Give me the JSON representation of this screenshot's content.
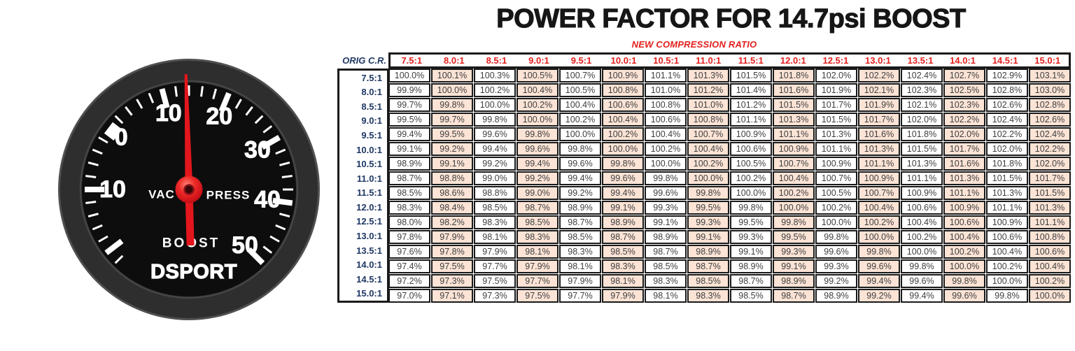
{
  "title": "POWER FACTOR FOR 14.7psi BOOST",
  "subtitle": "NEW COMPRESSION RATIO",
  "corner_label": "ORIG C.R.",
  "gauge": {
    "brand": "DSPORT",
    "vac_label": "VAC",
    "press_label": "PRESS",
    "boost_label": "BOOST",
    "needle_value": 15,
    "dial_numbers": [
      {
        "text": "10",
        "value": -10
      },
      {
        "text": "0",
        "value": 0
      },
      {
        "text": "10",
        "value": 10
      },
      {
        "text": "20",
        "value": 20
      },
      {
        "text": "30",
        "value": 30
      },
      {
        "text": "40",
        "value": 40
      },
      {
        "text": "50",
        "value": 50
      }
    ]
  },
  "colors": {
    "header_red": "#e2201e",
    "navy": "#1f3864",
    "cell_peach": "#fbe3d5",
    "cell_text": "#3f3f3f",
    "needle_red": "#e4161d",
    "table_border": "#1a1a1a"
  },
  "chart_data": {
    "type": "table",
    "title": "POWER FACTOR FOR 14.7psi BOOST",
    "column_group_label": "NEW COMPRESSION RATIO",
    "row_group_label": "ORIG C.R.",
    "cell_format": "percent_1dp",
    "columns": [
      "7.5:1",
      "8.0:1",
      "8.5:1",
      "9.0:1",
      "9.5:1",
      "10.0:1",
      "10.5:1",
      "11.0:1",
      "11.5:1",
      "12.0:1",
      "12.5:1",
      "13.0:1",
      "13.5:1",
      "14.0:1",
      "14.5:1",
      "15.0:1"
    ],
    "row_labels": [
      "7.5:1",
      "8.0:1",
      "8.5:1",
      "9.0:1",
      "9.5:1",
      "10.0:1",
      "10.5:1",
      "11.0:1",
      "11.5:1",
      "12.0:1",
      "12.5:1",
      "13.0:1",
      "13.5:1",
      "14.0:1",
      "14.5:1",
      "15.0:1"
    ],
    "values_pct": [
      [
        100.0,
        100.1,
        100.3,
        100.5,
        100.7,
        100.9,
        101.1,
        101.3,
        101.5,
        101.8,
        102.0,
        102.2,
        102.4,
        102.7,
        102.9,
        103.1
      ],
      [
        99.9,
        100.0,
        100.2,
        100.4,
        100.5,
        100.8,
        101.0,
        101.2,
        101.4,
        101.6,
        101.9,
        102.1,
        102.3,
        102.5,
        102.8,
        103.0
      ],
      [
        99.7,
        99.8,
        100.0,
        100.2,
        100.4,
        100.6,
        100.8,
        101.0,
        101.2,
        101.5,
        101.7,
        101.9,
        102.1,
        102.3,
        102.6,
        102.8
      ],
      [
        99.5,
        99.7,
        99.8,
        100.0,
        100.2,
        100.4,
        100.6,
        100.8,
        101.1,
        101.3,
        101.5,
        101.7,
        102.0,
        102.2,
        102.4,
        102.6
      ],
      [
        99.4,
        99.5,
        99.6,
        99.8,
        100.0,
        100.2,
        100.4,
        100.7,
        100.9,
        101.1,
        101.3,
        101.6,
        101.8,
        102.0,
        102.2,
        102.4
      ],
      [
        99.1,
        99.2,
        99.4,
        99.6,
        99.8,
        100.0,
        100.2,
        100.4,
        100.6,
        100.9,
        101.1,
        101.3,
        101.5,
        101.7,
        102.0,
        102.2
      ],
      [
        98.9,
        99.1,
        99.2,
        99.4,
        99.6,
        99.8,
        100.0,
        100.2,
        100.5,
        100.7,
        100.9,
        101.1,
        101.3,
        101.6,
        101.8,
        102.0
      ],
      [
        98.7,
        98.8,
        99.0,
        99.2,
        99.4,
        99.6,
        99.8,
        100.0,
        100.2,
        100.4,
        100.7,
        100.9,
        101.1,
        101.3,
        101.5,
        101.7
      ],
      [
        98.5,
        98.6,
        98.8,
        99.0,
        99.2,
        99.4,
        99.6,
        99.8,
        100.0,
        100.2,
        100.5,
        100.7,
        100.9,
        101.1,
        101.3,
        101.5
      ],
      [
        98.3,
        98.4,
        98.5,
        98.7,
        98.9,
        99.1,
        99.3,
        99.5,
        99.8,
        100.0,
        100.2,
        100.4,
        100.6,
        100.9,
        101.1,
        101.3
      ],
      [
        98.0,
        98.2,
        98.3,
        98.5,
        98.7,
        98.9,
        99.1,
        99.3,
        99.5,
        99.8,
        100.0,
        100.2,
        100.4,
        100.6,
        100.9,
        101.1
      ],
      [
        97.8,
        97.9,
        98.1,
        98.3,
        98.5,
        98.7,
        98.9,
        99.1,
        99.3,
        99.5,
        99.8,
        100.0,
        100.2,
        100.4,
        100.6,
        100.8
      ],
      [
        97.6,
        97.8,
        97.9,
        98.1,
        98.3,
        98.5,
        98.7,
        98.9,
        99.1,
        99.3,
        99.6,
        99.8,
        100.0,
        100.2,
        100.4,
        100.6
      ],
      [
        97.4,
        97.5,
        97.7,
        97.9,
        98.1,
        98.3,
        98.5,
        98.7,
        98.9,
        99.1,
        99.3,
        99.6,
        99.8,
        100.0,
        100.2,
        100.4
      ],
      [
        97.2,
        97.3,
        97.5,
        97.7,
        97.9,
        98.1,
        98.3,
        98.5,
        98.7,
        98.9,
        99.2,
        99.4,
        99.6,
        99.8,
        100.0,
        100.2
      ],
      [
        97.0,
        97.1,
        97.3,
        97.5,
        97.7,
        97.9,
        98.1,
        98.3,
        98.5,
        98.7,
        98.9,
        99.2,
        99.4,
        99.6,
        99.8,
        100.0
      ]
    ]
  }
}
